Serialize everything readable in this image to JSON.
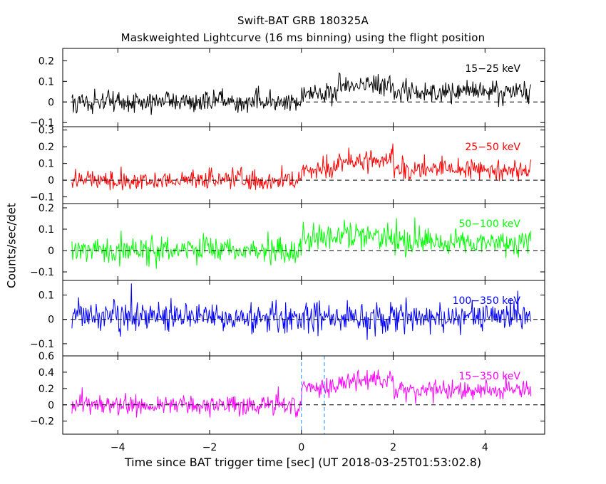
{
  "title": "Swift-BAT GRB 180325A",
  "subtitle": "Maskweighted Lightcurve (16 ms binning) using the flight position",
  "xlabel": "Time since BAT trigger time [sec] (UT 2018-03-25T01:53:02.8)",
  "ylabel": "Counts/sec/det",
  "chart_data": {
    "type": "line",
    "binning_sec": 0.016,
    "x_range": [
      -5,
      5
    ],
    "xlim": [
      -5.2,
      5.3
    ],
    "x_ticks": [
      -4,
      -2,
      0,
      2,
      4
    ],
    "x_tick_labels": [
      "−4",
      "−2",
      "0",
      "2",
      "4"
    ],
    "zero_line": "dashed",
    "panels": [
      {
        "name": "15-25 keV",
        "label": "15−25 keV",
        "color": "#000000",
        "ylim": [
          -0.12,
          0.26
        ],
        "y_ticks": [
          -0.1,
          0,
          0.1,
          0.2
        ],
        "y_tick_labels": [
          "−0.1",
          "0",
          "0.1",
          "0.2"
        ],
        "noise_sigma": 0.045,
        "segments": [
          {
            "x0": -5.0,
            "x1": 0.0,
            "mean": 0.0
          },
          {
            "x0": 0.0,
            "x1": 0.8,
            "mean": 0.04
          },
          {
            "x0": 0.8,
            "x1": 2.0,
            "mean": 0.08
          },
          {
            "x0": 2.0,
            "x1": 5.0,
            "mean": 0.05
          }
        ]
      },
      {
        "name": "25-50 keV",
        "label": "25−50 keV",
        "color": "#ff0000",
        "ylim": [
          -0.14,
          0.32
        ],
        "y_ticks": [
          -0.1,
          0,
          0.1,
          0.2,
          0.3
        ],
        "y_tick_labels": [
          "−0.1",
          "0",
          "0.1",
          "0.2",
          "0.3"
        ],
        "noise_sigma": 0.05,
        "segments": [
          {
            "x0": -5.0,
            "x1": 0.0,
            "mean": 0.0
          },
          {
            "x0": 0.0,
            "x1": 0.8,
            "mean": 0.07
          },
          {
            "x0": 0.8,
            "x1": 2.0,
            "mean": 0.11
          },
          {
            "x0": 2.0,
            "x1": 5.0,
            "mean": 0.06
          }
        ]
      },
      {
        "name": "50-100 keV",
        "label": "50−100 keV",
        "color": "#00ff00",
        "ylim": [
          -0.14,
          0.22
        ],
        "y_ticks": [
          -0.1,
          0,
          0.1,
          0.2
        ],
        "y_tick_labels": [
          "−0.1",
          "0",
          "0.1",
          "0.2"
        ],
        "noise_sigma": 0.05,
        "segments": [
          {
            "x0": -5.0,
            "x1": 0.0,
            "mean": 0.0
          },
          {
            "x0": 0.0,
            "x1": 0.8,
            "mean": 0.06
          },
          {
            "x0": 0.8,
            "x1": 2.0,
            "mean": 0.07
          },
          {
            "x0": 2.0,
            "x1": 5.0,
            "mean": 0.04
          }
        ]
      },
      {
        "name": "100-350 keV",
        "label": "100−350 keV",
        "color": "#0000ff",
        "ylim": [
          -0.15,
          0.16
        ],
        "y_ticks": [
          -0.1,
          0,
          0.1
        ],
        "y_tick_labels": [
          "−0.1",
          "0",
          "0.1"
        ],
        "noise_sigma": 0.05,
        "segments": [
          {
            "x0": -5.0,
            "x1": 5.0,
            "mean": 0.01
          }
        ]
      },
      {
        "name": "15-350 keV",
        "label": "15−350 keV",
        "color": "#ff00ff",
        "ylim": [
          -0.36,
          0.6
        ],
        "y_ticks": [
          -0.2,
          0,
          0.2,
          0.4,
          0.6
        ],
        "y_tick_labels": [
          "−0.2",
          "0",
          "0.2",
          "0.4",
          "0.6"
        ],
        "noise_sigma": 0.1,
        "vlines": [
          0.0,
          0.5
        ],
        "segments": [
          {
            "x0": -5.0,
            "x1": 0.0,
            "mean": 0.0
          },
          {
            "x0": 0.0,
            "x1": 0.8,
            "mean": 0.2
          },
          {
            "x0": 0.8,
            "x1": 2.0,
            "mean": 0.3
          },
          {
            "x0": 2.0,
            "x1": 5.0,
            "mean": 0.18
          }
        ]
      }
    ]
  }
}
